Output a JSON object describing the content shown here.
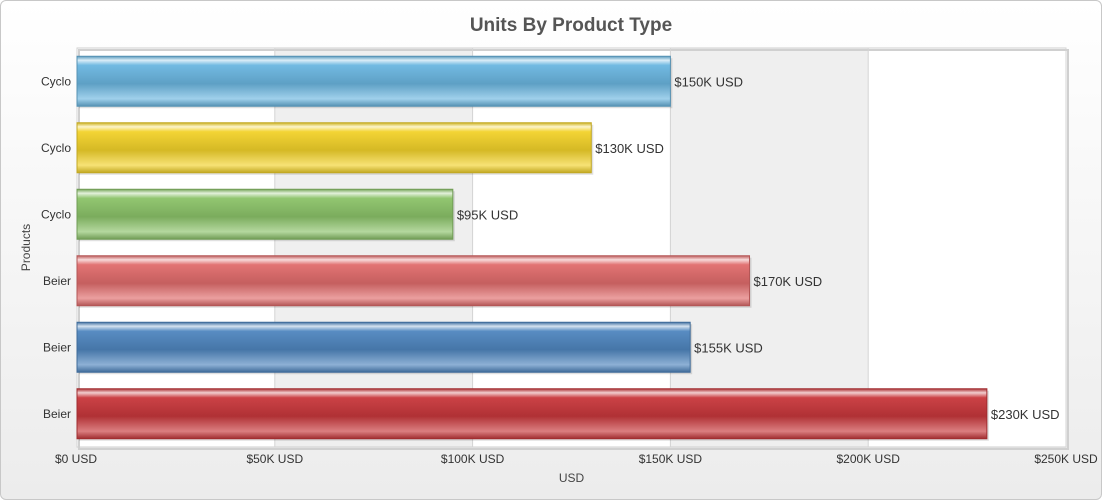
{
  "chart_data": {
    "type": "bar",
    "orientation": "horizontal",
    "title": "Units By Product Type",
    "xlabel": "USD",
    "ylabel": "Products",
    "categories": [
      "Cyclo",
      "Cyclo",
      "Cyclo",
      "Beier",
      "Beier",
      "Beier"
    ],
    "values": [
      150,
      130,
      95,
      170,
      155,
      230
    ],
    "value_labels": [
      "$150K USD",
      "$130K USD",
      "$95K USD",
      "$170K USD",
      "$155K USD",
      "$230K USD"
    ],
    "bar_colors": [
      "#6bb6e0",
      "#f2d22a",
      "#8cc36a",
      "#e06c6c",
      "#4f86bf",
      "#c8383c"
    ],
    "xlim": [
      0,
      250
    ],
    "xticks": [
      0,
      50,
      100,
      150,
      200,
      250
    ],
    "xtick_labels": [
      "$0 USD",
      "$50K USD",
      "$100K USD",
      "$150K USD",
      "$200K USD",
      "$250K USD"
    ],
    "grid": true,
    "legend": "none"
  }
}
